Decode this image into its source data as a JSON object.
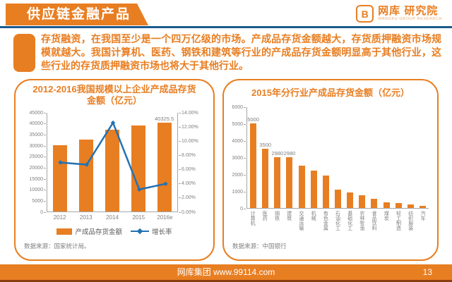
{
  "header": {
    "title": "供应链金融产品",
    "logo": {
      "icon_letter": "B",
      "name": "网库 研究院",
      "subtitle": "WANGKU GROUP RESEARCH"
    }
  },
  "intro": {
    "text": "存货融资，在我国至少是一个四万亿级的市场。产成品存货金额越大，存货质押融资市场规模就越大。我国计算机、医药、钢铁和建筑等行业的产成品存货金额明显高于其他行业，这些行业的存货质押融资市场也将大于其他行业。"
  },
  "colors": {
    "accent_orange": "#E87E22",
    "line_blue": "#2272B2",
    "divider_blue": "#1A5C8E",
    "footer_strip": "#8A3E12",
    "axis_text_gray": "#7F7F7F"
  },
  "chart_data": [
    {
      "type": "bar",
      "subtype": "bar+line dual axis",
      "title": "2012-2016我国规模以上企业产成品存货金额（亿元）",
      "categories": [
        "2012",
        "2013",
        "2014",
        "2015",
        "2016e"
      ],
      "series": [
        {
          "name": "产成品存货金额",
          "type": "bar",
          "axis": "left",
          "color": "#E87E22",
          "values": [
            30000,
            32700,
            37000,
            38800,
            40325.5
          ]
        },
        {
          "name": "增长率",
          "type": "line",
          "axis": "right",
          "color": "#2272B2",
          "values": [
            7.0,
            6.7,
            12.6,
            3.2,
            4.0
          ]
        }
      ],
      "left_axis": {
        "min": 0,
        "max": 45000,
        "step": 5000,
        "ticks": [
          "0",
          "5000",
          "10000",
          "15000",
          "20000",
          "25000",
          "30000",
          "35000",
          "40000",
          "45000"
        ]
      },
      "right_axis": {
        "min": 0,
        "max": 14,
        "step": 2,
        "ticks": [
          "0.00%",
          "2.00%",
          "4.00%",
          "6.00%",
          "8.00%",
          "10.00%",
          "12.00%",
          "14.00%"
        ]
      },
      "data_labels": {
        "4": "40325.5"
      },
      "grid": false,
      "legend_position": "bottom",
      "source": "数据来源：国家统计局。"
    },
    {
      "type": "bar",
      "title": "2015年分行业产成品存货金额（亿元）",
      "categories": [
        "计算机",
        "医药",
        "钢铁",
        "建筑",
        "交通运输",
        "机械",
        "有色金属",
        "石油化工",
        "基础化工",
        "农林牧渔",
        "食品饮料",
        "煤炭",
        "轻工制造",
        "纺织服装",
        "汽车"
      ],
      "values": [
        5000,
        3500,
        2980,
        2980,
        2500,
        2200,
        1900,
        1100,
        900,
        750,
        550,
        350,
        300,
        200,
        130
      ],
      "color": "#E87E22",
      "y_axis": {
        "min": 0,
        "max": 6000,
        "step": 1000,
        "ticks": [
          "0",
          "1000",
          "2000",
          "3000",
          "4000",
          "5000",
          "6000"
        ]
      },
      "data_labels": {
        "0": "5000",
        "1": "3500",
        "2": "2980",
        "3": "2980"
      },
      "grid": false,
      "legend_position": "none",
      "source": "数据来源：中国银行"
    }
  ],
  "footer": {
    "site": "网库集团 www.99114.com",
    "page": "13"
  }
}
